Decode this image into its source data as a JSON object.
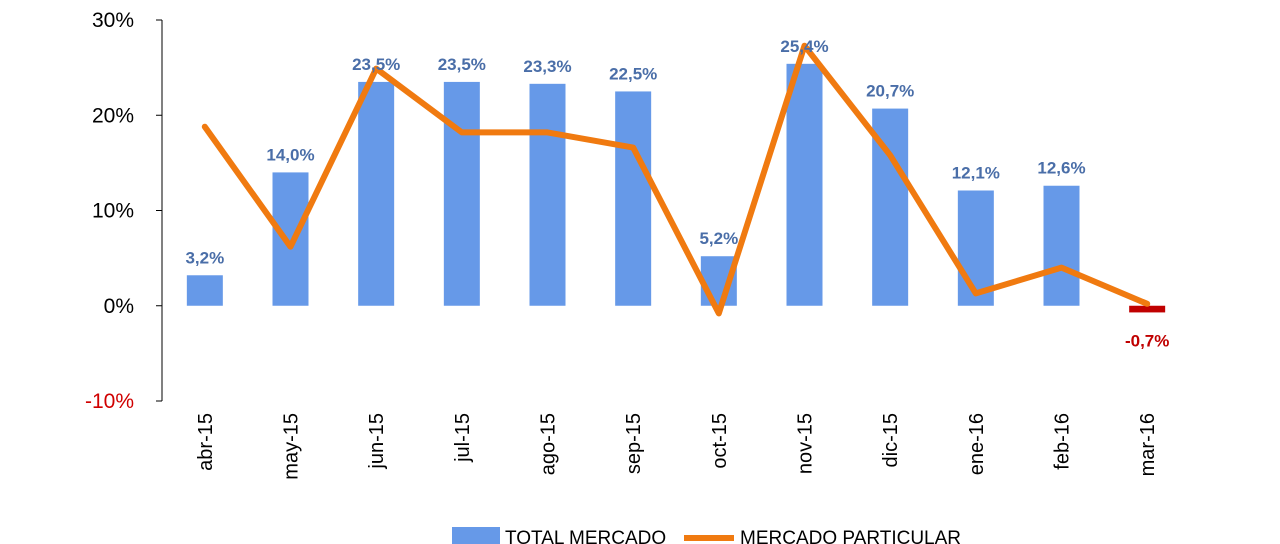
{
  "chart_data": {
    "type": "bar",
    "title": "",
    "xlabel": "",
    "ylabel": "",
    "ylim": [
      -10,
      30
    ],
    "yticks": [
      -10,
      0,
      10,
      20,
      30
    ],
    "ytick_labels": [
      "-10%",
      "0%",
      "10%",
      "20%",
      "30%"
    ],
    "grid": false,
    "categories": [
      "abr-15",
      "may-15",
      "jun-15",
      "jul-15",
      "ago-15",
      "sep-15",
      "oct-15",
      "nov-15",
      "dic-15",
      "ene-16",
      "feb-16",
      "mar-16"
    ],
    "series": [
      {
        "name": "TOTAL MERCADO",
        "type": "bar",
        "color": "#6699e8",
        "values": [
          3.2,
          14.0,
          23.5,
          23.5,
          23.3,
          22.5,
          5.2,
          25.4,
          20.7,
          12.1,
          12.6,
          -0.7
        ],
        "data_labels": [
          "3,2%",
          "14,0%",
          "23,5%",
          "23,5%",
          "23,3%",
          "22,5%",
          "5,2%",
          "25,4%",
          "20,7%",
          "12,1%",
          "12,6%",
          "-0,7%"
        ],
        "negative_color": "#c00000"
      },
      {
        "name": "MERCADO PARTICULAR",
        "type": "line",
        "color": "#f07a10",
        "values": [
          18.8,
          6.2,
          24.9,
          18.2,
          18.2,
          16.6,
          -0.8,
          27.3,
          15.8,
          1.3,
          4.0,
          0.2
        ]
      }
    ],
    "legend": "bottom-center",
    "colors": {
      "axis": "#000000",
      "label": "#4a6ea8",
      "negative_label": "#c00000",
      "negative_tick": "#d00000"
    }
  }
}
